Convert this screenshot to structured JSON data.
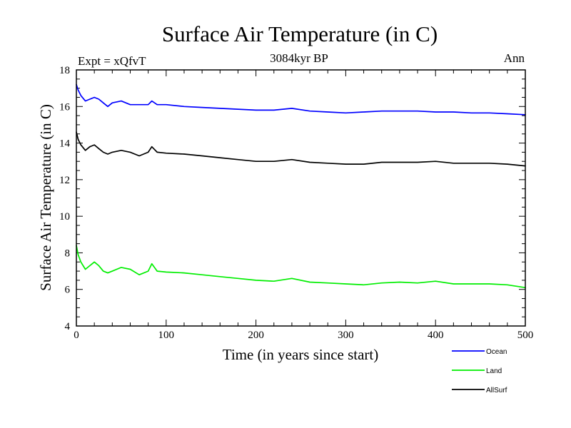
{
  "chart_data": {
    "type": "line",
    "title": "Surface Air Temperature (in C)",
    "subtitle": "3084kyr BP",
    "left_label": "Expt = xQfvT",
    "right_label": "Ann",
    "xlabel": "Time (in years since start)",
    "ylabel": "Surface Air Temperature (in C)",
    "xlim": [
      0,
      500
    ],
    "ylim": [
      4,
      18
    ],
    "x_ticks": [
      0,
      100,
      200,
      300,
      400,
      500
    ],
    "y_ticks": [
      4,
      6,
      8,
      10,
      12,
      14,
      16,
      18
    ],
    "grid": false,
    "legend_position": "bottom-right",
    "series": [
      {
        "name": "Ocean",
        "color": "#0000ff",
        "x": [
          0,
          2,
          5,
          10,
          15,
          20,
          25,
          30,
          35,
          40,
          50,
          60,
          70,
          80,
          84,
          90,
          100,
          120,
          140,
          160,
          180,
          200,
          220,
          240,
          260,
          280,
          300,
          320,
          340,
          360,
          380,
          400,
          420,
          440,
          460,
          480,
          500
        ],
        "y": [
          17.2,
          16.9,
          16.6,
          16.3,
          16.4,
          16.5,
          16.4,
          16.2,
          16.0,
          16.2,
          16.3,
          16.1,
          16.1,
          16.1,
          16.3,
          16.1,
          16.1,
          16.0,
          15.95,
          15.9,
          15.85,
          15.8,
          15.8,
          15.9,
          15.75,
          15.7,
          15.65,
          15.7,
          15.75,
          15.75,
          15.75,
          15.7,
          15.7,
          15.65,
          15.65,
          15.6,
          15.55
        ]
      },
      {
        "name": "Land",
        "color": "#00ee00",
        "x": [
          0,
          2,
          5,
          10,
          15,
          20,
          25,
          30,
          35,
          40,
          50,
          60,
          70,
          80,
          84,
          90,
          100,
          120,
          140,
          160,
          180,
          200,
          220,
          240,
          260,
          280,
          300,
          320,
          340,
          360,
          380,
          400,
          420,
          440,
          460,
          480,
          500
        ],
        "y": [
          8.4,
          7.9,
          7.5,
          7.1,
          7.3,
          7.5,
          7.3,
          7.0,
          6.9,
          7.0,
          7.2,
          7.1,
          6.8,
          7.0,
          7.4,
          7.0,
          6.95,
          6.9,
          6.8,
          6.7,
          6.6,
          6.5,
          6.45,
          6.6,
          6.4,
          6.35,
          6.3,
          6.25,
          6.35,
          6.4,
          6.35,
          6.45,
          6.3,
          6.3,
          6.3,
          6.25,
          6.1
        ]
      },
      {
        "name": "AllSurf",
        "color": "#000000",
        "x": [
          0,
          2,
          5,
          10,
          15,
          20,
          25,
          30,
          35,
          40,
          50,
          60,
          70,
          80,
          84,
          90,
          100,
          120,
          140,
          160,
          180,
          200,
          220,
          240,
          260,
          280,
          300,
          320,
          340,
          360,
          380,
          400,
          420,
          440,
          460,
          480,
          500
        ],
        "y": [
          14.6,
          14.2,
          13.9,
          13.6,
          13.8,
          13.9,
          13.7,
          13.5,
          13.4,
          13.5,
          13.6,
          13.5,
          13.3,
          13.5,
          13.8,
          13.5,
          13.45,
          13.4,
          13.3,
          13.2,
          13.1,
          13.0,
          13.0,
          13.1,
          12.95,
          12.9,
          12.85,
          12.85,
          12.95,
          12.95,
          12.95,
          13.0,
          12.9,
          12.9,
          12.9,
          12.85,
          12.75
        ]
      }
    ]
  }
}
